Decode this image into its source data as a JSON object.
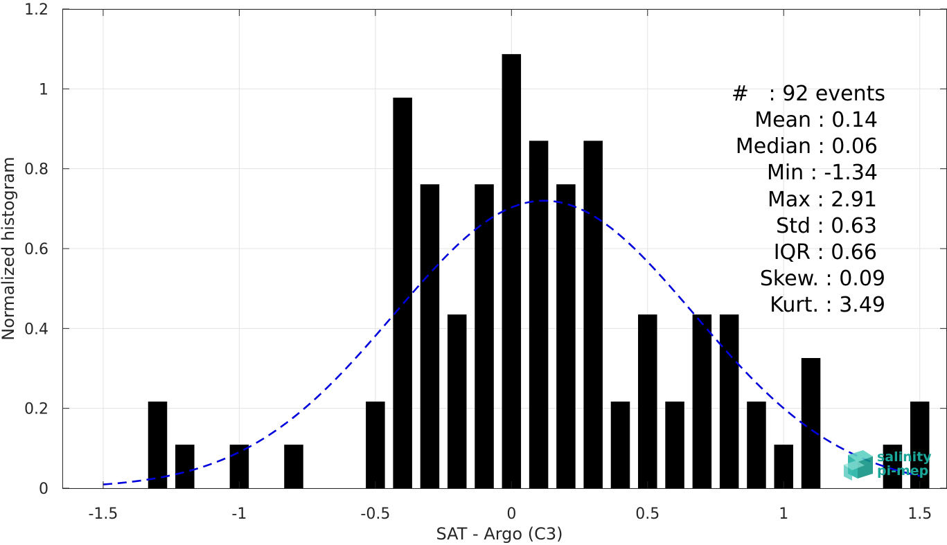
{
  "chart_data": {
    "type": "bar",
    "xlabel": "SAT - Argo (C3)",
    "ylabel": "Normalized histogram",
    "xlim": [
      -1.65,
      1.6
    ],
    "ylim": [
      0,
      1.2
    ],
    "xticks": [
      -1.5,
      -1,
      -0.5,
      0,
      0.5,
      1,
      1.5
    ],
    "xtick_labels": [
      "-1.5",
      "-1",
      "-0.5",
      "0",
      "0.5",
      "1",
      "1.5"
    ],
    "yticks": [
      0,
      0.2,
      0.4,
      0.6,
      0.8,
      1,
      1.2
    ],
    "ytick_labels": [
      "0",
      "0.2",
      "0.4",
      "0.6",
      "0.8",
      "1",
      "1.2"
    ],
    "grid": true,
    "bar_width": 0.07,
    "bar_color": "#000000",
    "bars": [
      {
        "x": -1.3,
        "y": 0.217
      },
      {
        "x": -1.2,
        "y": 0.109
      },
      {
        "x": -1.0,
        "y": 0.109
      },
      {
        "x": -0.8,
        "y": 0.109
      },
      {
        "x": -0.5,
        "y": 0.217
      },
      {
        "x": -0.4,
        "y": 0.978
      },
      {
        "x": -0.3,
        "y": 0.761
      },
      {
        "x": -0.2,
        "y": 0.435
      },
      {
        "x": -0.1,
        "y": 0.761
      },
      {
        "x": 0.0,
        "y": 1.087
      },
      {
        "x": 0.1,
        "y": 0.87
      },
      {
        "x": 0.2,
        "y": 0.761
      },
      {
        "x": 0.3,
        "y": 0.87
      },
      {
        "x": 0.4,
        "y": 0.217
      },
      {
        "x": 0.5,
        "y": 0.435
      },
      {
        "x": 0.6,
        "y": 0.217
      },
      {
        "x": 0.7,
        "y": 0.435
      },
      {
        "x": 0.8,
        "y": 0.435
      },
      {
        "x": 0.9,
        "y": 0.217
      },
      {
        "x": 1.0,
        "y": 0.109
      },
      {
        "x": 1.1,
        "y": 0.326
      },
      {
        "x": 1.4,
        "y": 0.109
      },
      {
        "x": 1.5,
        "y": 0.217
      }
    ],
    "fit_curve": {
      "style": "dashed",
      "color": "#0000dd",
      "x_range": [
        -1.5,
        1.5
      ],
      "mean": 0.12,
      "std": 0.55,
      "peak": 0.72
    },
    "stats_box": {
      "placement": "top-right",
      "lines": [
        "#   : 92 events",
        "Mean : 0.14",
        "Median : 0.06",
        "Min : -1.34",
        "Max : 2.91",
        "Std : 0.63",
        "IQR : 0.66",
        "Skew. : 0.09",
        "Kurt. : 3.49"
      ]
    }
  },
  "logo": {
    "name": "salinity-pi-mep-logo",
    "line1": "salinity",
    "line2": "pi-mep",
    "color": "#1aa79a"
  }
}
